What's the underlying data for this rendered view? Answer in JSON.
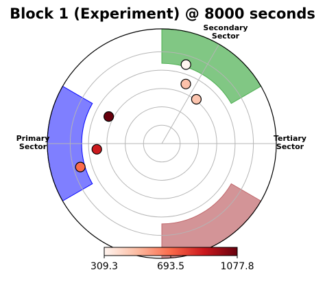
{
  "chart_data": {
    "type": "scatter",
    "subtype": "polar",
    "title": "Block 1  (Experiment) @ 8000 seconds",
    "sectors": [
      {
        "name": "Secondary Sector",
        "label_lines": [
          "Secondary",
          "Sector"
        ],
        "theta_start_deg": 0,
        "theta_end_deg": 60,
        "color": "#4caf50",
        "alpha": 0.7
      },
      {
        "name": "Tertiary Sector",
        "label_lines": [
          "Tertiary",
          "Sector"
        ],
        "theta_start_deg": 120,
        "theta_end_deg": 180,
        "color": "#c0676b",
        "alpha": 0.7
      },
      {
        "name": "Primary Sector",
        "label_lines": [
          "Primary",
          "Sector"
        ],
        "theta_start_deg": 240,
        "theta_end_deg": 300,
        "color": "#0000ff",
        "alpha": 0.5
      }
    ],
    "sector_radial_range": [
      0.7,
      1.0
    ],
    "radial_grid": [
      0.16,
      0.32,
      0.48,
      0.64,
      0.8
    ],
    "grid": true,
    "colorbar": {
      "colormap": "Reds",
      "min": 309.3,
      "max": 1077.8,
      "ticks": [
        "309.3",
        "693.5",
        "1077.8"
      ],
      "orientation": "horizontal",
      "placement": "bottom"
    },
    "points": [
      {
        "theta_deg": 17,
        "r": 0.72,
        "value": 309.3
      },
      {
        "theta_deg": 22,
        "r": 0.56,
        "value": 480
      },
      {
        "theta_deg": 38,
        "r": 0.49,
        "value": 470
      },
      {
        "theta_deg": 297,
        "r": 0.52,
        "value": 1077.8
      },
      {
        "theta_deg": 265,
        "r": 0.57,
        "value": 880
      },
      {
        "theta_deg": 254,
        "r": 0.74,
        "value": 690
      }
    ]
  }
}
